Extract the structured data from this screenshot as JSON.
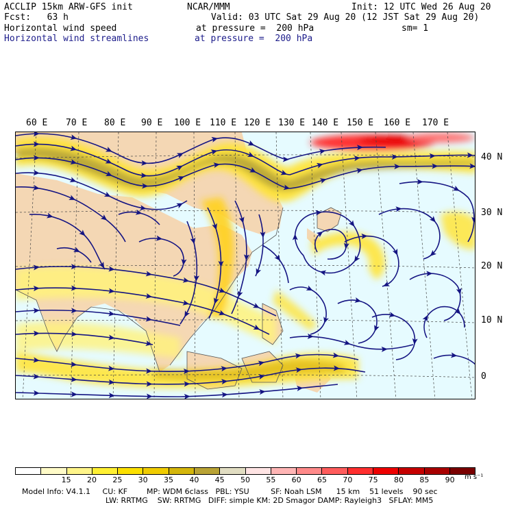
{
  "header": {
    "model": "ACCLIP 15km ARW-GFS init",
    "center": "NCAR/MMM",
    "init": "Init: 12 UTC Wed 26 Aug 20",
    "fcst": "Fcst:   63 h",
    "valid": "Valid: 03 UTC Sat 29 Aug 20 (12 JST Sat 29 Aug 20)",
    "field1_name": "Horizontal wind speed",
    "field1_level": "at pressure =  200 hPa",
    "smoothing": "sm= 1",
    "field2_name": "Horizontal wind streamlines",
    "field2_level": "at pressure =  200 hPa"
  },
  "map": {
    "longitude_labels": [
      "60 E",
      "70 E",
      "80 E",
      "90 E",
      "100 E",
      "110 E",
      "120 E",
      "130 E",
      "140 E",
      "150 E",
      "160 E",
      "170 E"
    ],
    "latitude_labels": [
      "40 N",
      "30 N",
      "20 N",
      "10 N",
      "0"
    ],
    "streamline_color": "#141482",
    "land_color": "#f5d6b0"
  },
  "colorbar": {
    "ticks": [
      "15",
      "20",
      "25",
      "30",
      "35",
      "40",
      "45",
      "50",
      "55",
      "60",
      "65",
      "70",
      "75",
      "80",
      "85",
      "90"
    ],
    "units": "m s⁻¹",
    "colors": [
      "#ffffff",
      "#fffbc8",
      "#fff58a",
      "#fff033",
      "#fce000",
      "#f0cc00",
      "#d4b60c",
      "#b9a335",
      "#e1ddc2",
      "#ffe4e4",
      "#ffb5b5",
      "#ff8a8a",
      "#ff5c5c",
      "#ff2f2f",
      "#ee0000",
      "#c60000",
      "#a80000",
      "#7a0000"
    ]
  },
  "model_info": {
    "line1": "Model Info: V4.1.1     CU: KF        MP: WDM 6class   PBL: YSU         SF: Noah LSM      15 km    51 levels    90 sec",
    "line2": "LW: RRTMG    SW: RRTMG   DIFF: simple KM: 2D Smagor DAMP: Rayleigh3   SFLAY: MM5"
  }
}
